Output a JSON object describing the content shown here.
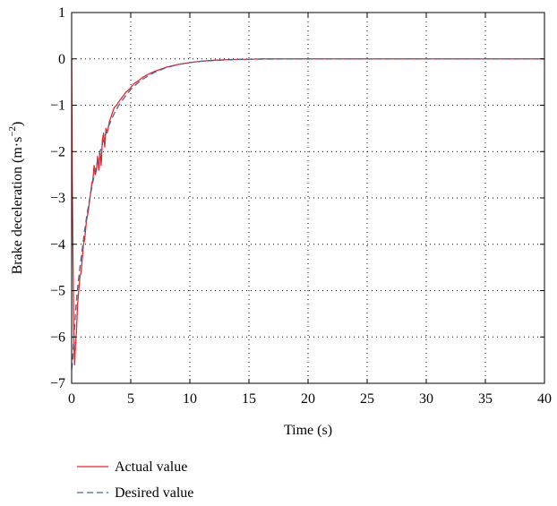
{
  "chart_data": {
    "type": "line",
    "xlabel": "Time (s)",
    "ylabel_main": "Brake deceleration (m·s",
    "ylabel_sup": "−2",
    "ylabel_close": ")",
    "xlim": [
      0,
      40
    ],
    "ylim": [
      -7,
      1
    ],
    "xticks": [
      0,
      5,
      10,
      15,
      20,
      25,
      30,
      35,
      40
    ],
    "xtick_labels": [
      "0",
      "5",
      "10",
      "15",
      "20",
      "25",
      "30",
      "35",
      "40"
    ],
    "yticks": [
      1,
      0,
      -1,
      -2,
      -3,
      -4,
      -5,
      -6,
      -7
    ],
    "ytick_labels": [
      "1",
      "0",
      "−1",
      "−2",
      "−3",
      "−4",
      "−5",
      "−6",
      "−7"
    ],
    "grid": true,
    "legend_position": "bottom-left",
    "series": [
      {
        "name": "Actual value",
        "color": "#e8262b",
        "style": "solid",
        "x": [
          0,
          0.05,
          0.12,
          0.18,
          0.25,
          0.32,
          0.4,
          0.5,
          0.6,
          0.7,
          0.8,
          0.9,
          1.0,
          1.1,
          1.25,
          1.4,
          1.55,
          1.7,
          1.8,
          1.9,
          2.0,
          2.1,
          2.2,
          2.3,
          2.4,
          2.5,
          2.6,
          2.7,
          2.8,
          2.9,
          3.0,
          3.2,
          3.4,
          3.6,
          3.8,
          4.0,
          4.3,
          4.6,
          4.9,
          5.2,
          5.6,
          6.0,
          6.5,
          7.0,
          8.0,
          9.0,
          10.0,
          11.0,
          12.0,
          13.0,
          14.0,
          15.0,
          16.0,
          17.0,
          18.0,
          19.0,
          20.0,
          21.0,
          22.0,
          25.0,
          30.0,
          35.0,
          40.0
        ],
        "y": [
          0,
          -2.5,
          -4.4,
          -6.0,
          -6.6,
          -6.2,
          -5.9,
          -5.3,
          -5.0,
          -4.7,
          -4.6,
          -4.3,
          -4.0,
          -3.9,
          -3.5,
          -3.3,
          -3.0,
          -2.7,
          -2.6,
          -2.3,
          -2.5,
          -2.4,
          -2.1,
          -2.4,
          -2.0,
          -2.3,
          -1.75,
          -1.6,
          -1.9,
          -1.5,
          -1.6,
          -1.35,
          -1.2,
          -1.05,
          -1.0,
          -0.92,
          -0.82,
          -0.72,
          -0.65,
          -0.55,
          -0.48,
          -0.4,
          -0.33,
          -0.27,
          -0.18,
          -0.12,
          -0.08,
          -0.05,
          -0.03,
          -0.02,
          -0.01,
          -0.01,
          0,
          0,
          0,
          0,
          0,
          0,
          0,
          0,
          0,
          0,
          0
        ]
      },
      {
        "name": "Desired value",
        "color": "#4a6796",
        "style": "dashed",
        "x": [
          0,
          0.08,
          0.15,
          0.25,
          0.35,
          0.5,
          0.7,
          0.9,
          1.1,
          1.3,
          1.5,
          1.8,
          2.1,
          2.4,
          2.7,
          3.0,
          3.3,
          3.6,
          4.0,
          4.5,
          5.0,
          5.5,
          6.0,
          7.0,
          8.0,
          9.0,
          10.0,
          11.0,
          12.0,
          13.0,
          14.0,
          15.0,
          16.0,
          18.0,
          20.0,
          22.0,
          25.0,
          30.0,
          35.0,
          40.0
        ],
        "y": [
          -6.7,
          -6.5,
          -6.2,
          -5.8,
          -5.4,
          -4.95,
          -4.5,
          -4.1,
          -3.7,
          -3.35,
          -3.05,
          -2.65,
          -2.3,
          -2.0,
          -1.75,
          -1.53,
          -1.35,
          -1.18,
          -1.0,
          -0.82,
          -0.66,
          -0.54,
          -0.44,
          -0.29,
          -0.19,
          -0.12,
          -0.08,
          -0.05,
          -0.035,
          -0.022,
          -0.014,
          -0.009,
          -0.006,
          -0.002,
          -0.001,
          0,
          0,
          0,
          0,
          0
        ]
      }
    ]
  }
}
